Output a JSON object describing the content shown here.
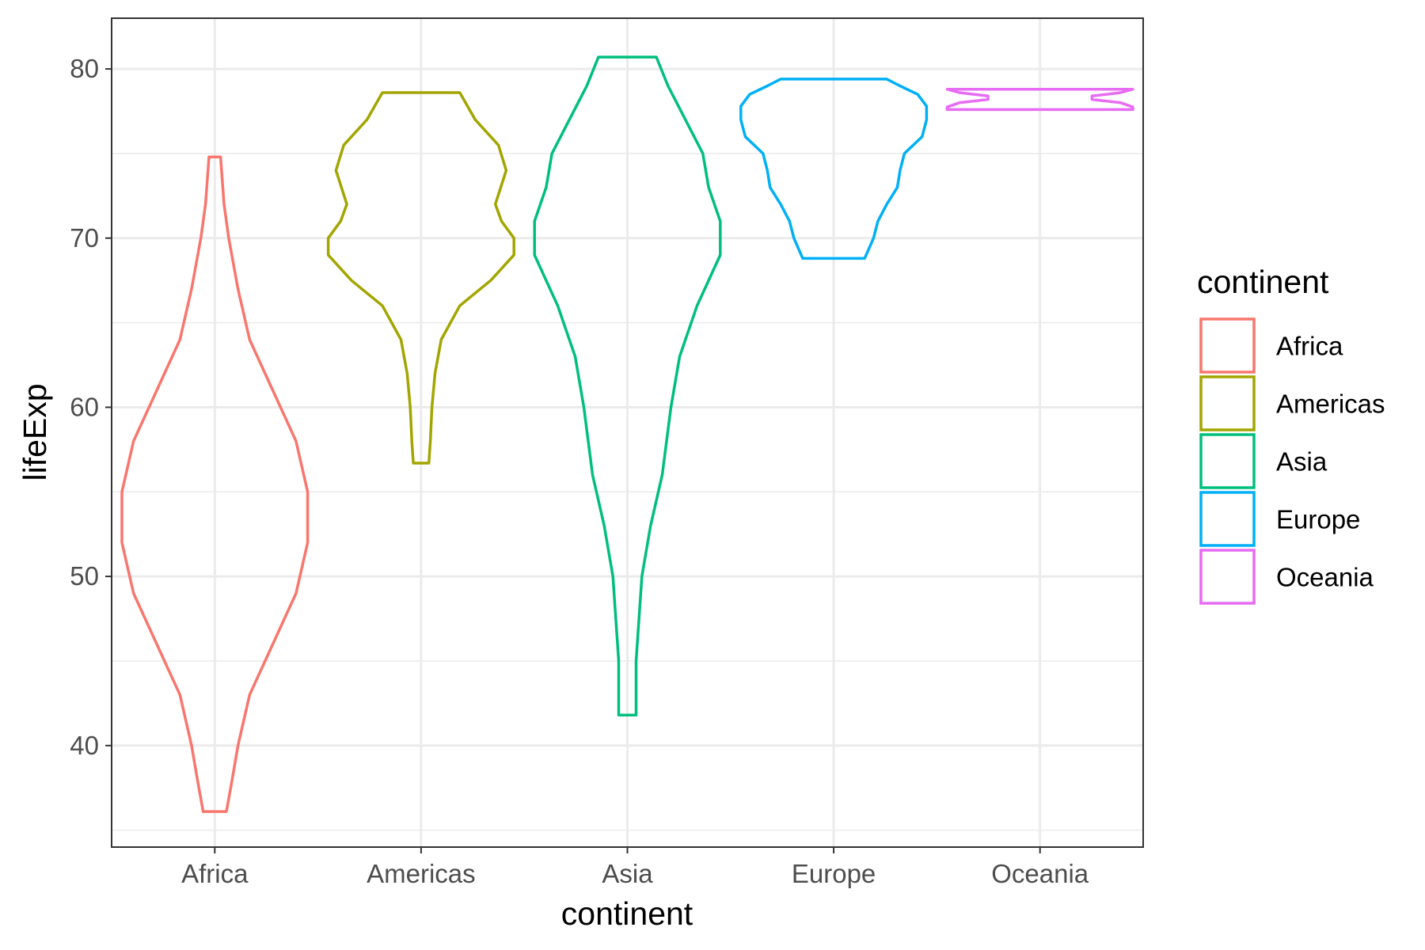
{
  "chart_data": {
    "type": "violin",
    "title": "",
    "xlabel": "continent",
    "ylabel": "lifeExp",
    "ylim": [
      34,
      83
    ],
    "yticks": [
      40,
      50,
      60,
      70,
      80
    ],
    "grid": true,
    "legend": {
      "title": "continent",
      "placement": "right",
      "entries": [
        "Africa",
        "Americas",
        "Asia",
        "Europe",
        "Oceania"
      ]
    },
    "categories": [
      "Africa",
      "Americas",
      "Asia",
      "Europe",
      "Oceania"
    ],
    "series": [
      {
        "category": "Africa",
        "color": "#F8766D",
        "min": 36.1,
        "max": 74.8,
        "density": [
          [
            36.1,
            0.1
          ],
          [
            38,
            0.15
          ],
          [
            40,
            0.2
          ],
          [
            43,
            0.3
          ],
          [
            46,
            0.5
          ],
          [
            49,
            0.7
          ],
          [
            52,
            0.8
          ],
          [
            55,
            0.8
          ],
          [
            58,
            0.7
          ],
          [
            61,
            0.5
          ],
          [
            64,
            0.3
          ],
          [
            67,
            0.2
          ],
          [
            70,
            0.12
          ],
          [
            72,
            0.08
          ],
          [
            74.8,
            0.05
          ]
        ]
      },
      {
        "category": "Americas",
        "color": "#A3A500",
        "min": 56.7,
        "max": 78.6,
        "density": [
          [
            56.7,
            0.05
          ],
          [
            58,
            0.06
          ],
          [
            60,
            0.07
          ],
          [
            62,
            0.09
          ],
          [
            64,
            0.13
          ],
          [
            66,
            0.25
          ],
          [
            67.5,
            0.45
          ],
          [
            69,
            0.6
          ],
          [
            70,
            0.6
          ],
          [
            71,
            0.52
          ],
          [
            72,
            0.48
          ],
          [
            74,
            0.55
          ],
          [
            75.5,
            0.5
          ],
          [
            77,
            0.35
          ],
          [
            78.6,
            0.25
          ]
        ]
      },
      {
        "category": "Asia",
        "color": "#00BF7D",
        "min": 41.8,
        "max": 80.7,
        "density": [
          [
            41.8,
            0.03
          ],
          [
            45,
            0.03
          ],
          [
            50,
            0.05
          ],
          [
            53,
            0.08
          ],
          [
            56,
            0.12
          ],
          [
            60,
            0.15
          ],
          [
            63,
            0.18
          ],
          [
            66,
            0.24
          ],
          [
            69,
            0.32
          ],
          [
            71,
            0.32
          ],
          [
            73,
            0.28
          ],
          [
            75,
            0.26
          ],
          [
            77,
            0.2
          ],
          [
            79,
            0.14
          ],
          [
            80.7,
            0.1
          ]
        ]
      },
      {
        "category": "Europe",
        "color": "#00B0F6",
        "min": 68.8,
        "max": 79.4,
        "density": [
          [
            68.8,
            0.35
          ],
          [
            70,
            0.45
          ],
          [
            71,
            0.5
          ],
          [
            72,
            0.6
          ],
          [
            73,
            0.72
          ],
          [
            74,
            0.75
          ],
          [
            75,
            0.8
          ],
          [
            76,
            1.0
          ],
          [
            77,
            1.05
          ],
          [
            77.8,
            1.05
          ],
          [
            78.5,
            0.95
          ],
          [
            79,
            0.75
          ],
          [
            79.4,
            0.6
          ]
        ]
      },
      {
        "category": "Oceania",
        "color": "#E76BF3",
        "min": 77.6,
        "max": 78.8,
        "density": [
          [
            77.6,
            1.0
          ],
          [
            77.75,
            1.0
          ],
          [
            78.0,
            0.87
          ],
          [
            78.2,
            0.56
          ],
          [
            78.4,
            0.56
          ],
          [
            78.6,
            0.87
          ],
          [
            78.8,
            1.0
          ]
        ]
      }
    ]
  }
}
